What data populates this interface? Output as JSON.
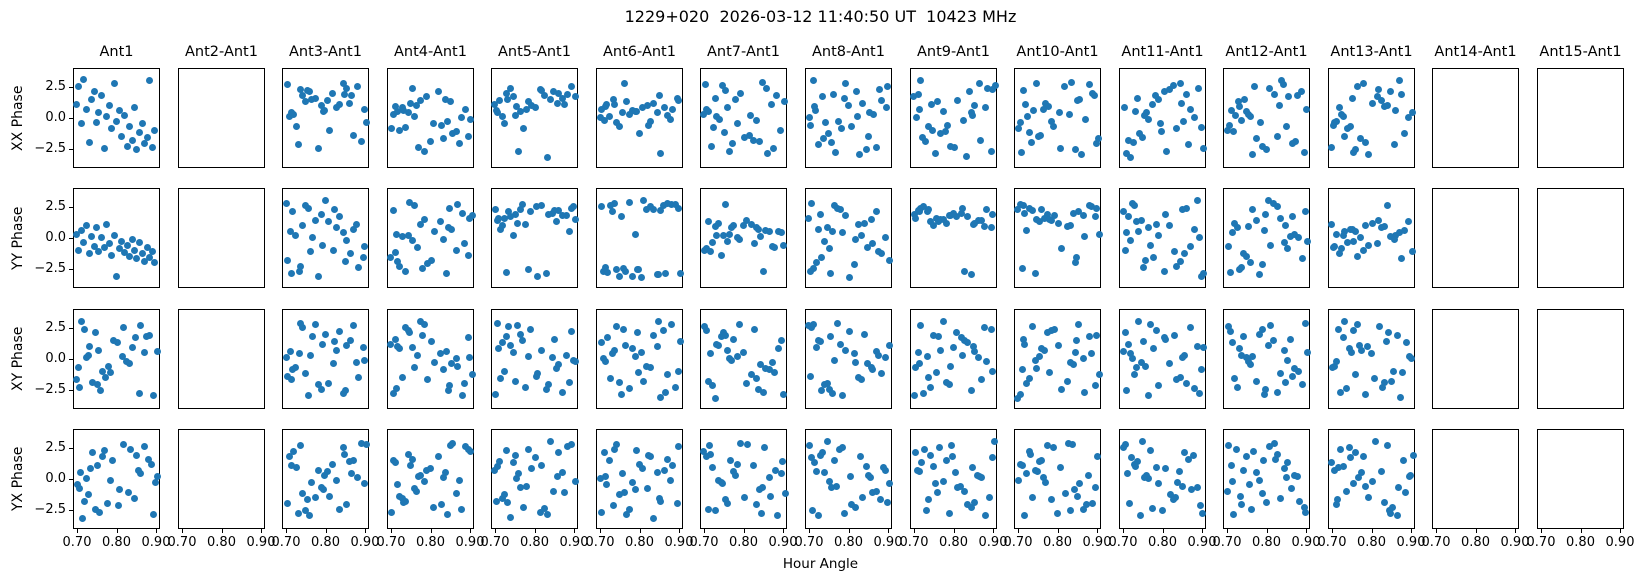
{
  "chart_data": {
    "type": "scatter",
    "suptitle": "1229+020  2026-03-12 11:40:50 UT  10423 MHz",
    "xlabel": "Hour Angle",
    "row_labels": [
      "XX Phase",
      "YY Phase",
      "XY Phase",
      "YX Phase"
    ],
    "col_titles": [
      "Ant1",
      "Ant2-Ant1",
      "Ant3-Ant1",
      "Ant4-Ant1",
      "Ant5-Ant1",
      "Ant6-Ant1",
      "Ant7-Ant1",
      "Ant8-Ant1",
      "Ant9-Ant1",
      "Ant10-Ant1",
      "Ant11-Ant1",
      "Ant12-Ant1",
      "Ant13-Ant1",
      "Ant14-Ant1",
      "Ant15-Ant1"
    ],
    "grid": {
      "rows": 4,
      "cols": 15
    },
    "xlim": [
      0.69,
      0.91
    ],
    "ylim": [
      -4.05,
      4.05
    ],
    "xtick_values": [
      0.7,
      0.8,
      0.9
    ],
    "xtick_labels": [
      "0.70",
      "0.80",
      "0.90"
    ],
    "ytick_values": [
      2.5,
      0.0,
      -2.5
    ],
    "ytick_labels": [
      "2.5",
      "0.0",
      "−2.5"
    ],
    "marker_color": "#1f77b4",
    "background_color": "#ffffff",
    "empty_panel_columns": [
      "Ant2-Ant1",
      "Ant14-Ant1",
      "Ant15-Ant1"
    ],
    "x_pools": [
      [
        0.701,
        0.864,
        0.733,
        0.792,
        0.815,
        0.746,
        0.878,
        0.706,
        0.771,
        0.842,
        0.896,
        0.758,
        0.724,
        0.803,
        0.851,
        0.716,
        0.786,
        0.869,
        0.739,
        0.826,
        0.901,
        0.753,
        0.779,
        0.834,
        0.711,
        0.889,
        0.762,
        0.808,
        0.846,
        0.728,
        0.795,
        0.858
      ],
      [
        0.885,
        0.719,
        0.773,
        0.841,
        0.704,
        0.829,
        0.762,
        0.899,
        0.735,
        0.787,
        0.853,
        0.713,
        0.806,
        0.748,
        0.871,
        0.726,
        0.893,
        0.756,
        0.818,
        0.698,
        0.836,
        0.781,
        0.742,
        0.864,
        0.709,
        0.825,
        0.767,
        0.847,
        0.73,
        0.798,
        0.876,
        0.752
      ],
      [
        0.744,
        0.812,
        0.697,
        0.859,
        0.776,
        0.728,
        0.89,
        0.751,
        0.822,
        0.705,
        0.845,
        0.783,
        0.717,
        0.867,
        0.737,
        0.799,
        0.856,
        0.722,
        0.881,
        0.763,
        0.709,
        0.831,
        0.791,
        0.749,
        0.902,
        0.769,
        0.814,
        0.701,
        0.838,
        0.757,
        0.872,
        0.726
      ],
      [
        0.806,
        0.731,
        0.869,
        0.714,
        0.791,
        0.848,
        0.699,
        0.764,
        0.882,
        0.739,
        0.817,
        0.754,
        0.894,
        0.708,
        0.779,
        0.833,
        0.721,
        0.861,
        0.746,
        0.897,
        0.772,
        0.711,
        0.826,
        0.786,
        0.851,
        0.734,
        0.876,
        0.702,
        0.798,
        0.842,
        0.759,
        0.819
      ],
      [
        0.757,
        0.894,
        0.712,
        0.838,
        0.781,
        0.726,
        0.863,
        0.704,
        0.799,
        0.851,
        0.743,
        0.884,
        0.718,
        0.772,
        0.829,
        0.697,
        0.846,
        0.765,
        0.903,
        0.734,
        0.808,
        0.752,
        0.877,
        0.709,
        0.823,
        0.789,
        0.741,
        0.866,
        0.715,
        0.843,
        0.776,
        0.897
      ],
      [
        0.731,
        0.802,
        0.877,
        0.698,
        0.766,
        0.843,
        0.722,
        0.891,
        0.749,
        0.814,
        0.703,
        0.858,
        0.774,
        0.736,
        0.896,
        0.711,
        0.788,
        0.852,
        0.727,
        0.869,
        0.745,
        0.901,
        0.761,
        0.806,
        0.717,
        0.834,
        0.782,
        0.755,
        0.887,
        0.707,
        0.827,
        0.848
      ],
      [
        0.696,
        0.702,
        0.709,
        0.715,
        0.721,
        0.728,
        0.734,
        0.741,
        0.747,
        0.753,
        0.76,
        0.766,
        0.773,
        0.779,
        0.785,
        0.792,
        0.798,
        0.805,
        0.811,
        0.817,
        0.824,
        0.83,
        0.837,
        0.843,
        0.849,
        0.856,
        0.862,
        0.869,
        0.875,
        0.881,
        0.888,
        0.894
      ]
    ],
    "y_pools": [
      [
        2.7,
        -1.3,
        0.4,
        -2.8,
        1.6,
        0.2,
        -0.9,
        2.3,
        -1.7,
        0.8,
        3.0,
        -0.4,
        -2.2,
        1.2,
        0.0,
        -1.5,
        2.5,
        -0.7,
        1.9,
        -2.6,
        0.6,
        -0.1,
        2.1,
        -1.1,
        1.4,
        -2.0,
        0.3,
        2.8,
        -1.8,
        0.9,
        -2.4,
        1.7
      ],
      [
        -0.6,
        1.8,
        -2.3,
        0.7,
        2.9,
        -1.4,
        0.1,
        -2.7,
        1.5,
        -0.3,
        2.2,
        -1.9,
        0.9,
        3.1,
        -0.8,
        1.3,
        -2.1,
        0.4,
        -1.2,
        2.6,
        -0.2,
        1.0,
        -2.9,
        1.7,
        0.5,
        -1.6,
        2.4,
        -0.5,
        1.1,
        -2.5,
        2.0,
        0.2
      ],
      [
        1.4,
        -2.6,
        0.8,
        2.2,
        -0.5,
        -1.8,
        2.9,
        0.1,
        -2.3,
        1.1,
        -0.9,
        2.5,
        -1.5,
        0.6,
        -3.0,
        1.8,
        0.3,
        -1.2,
        2.7,
        -0.6,
        1.5,
        -2.8,
        0.9,
        2.0,
        -0.1,
        -2.2,
        1.2,
        -1.7,
        3.1,
        0.5,
        -1.0,
        2.4
      ],
      [
        -1.9,
        0.5,
        2.8,
        -0.8,
        1.3,
        -2.5,
        0.2,
        1.9,
        -1.4,
        2.6,
        -0.3,
        -2.9,
        1.0,
        0.7,
        -2.0,
        2.3,
        -0.6,
        1.6,
        -1.1,
        0.0,
        2.9,
        -1.6,
        0.8,
        -2.4,
        1.2,
        3.0,
        -0.2,
        -1.3,
        2.1,
        -2.7,
        0.4,
        1.5
      ],
      [
        0.9,
        -2.1,
        1.7,
        -0.4,
        2.4,
        -1.5,
        0.1,
        -2.8,
        1.2,
        2.9,
        -0.7,
        0.5,
        -1.9,
        2.2,
        -0.2,
        -3.1,
        1.6,
        0.8,
        -1.2,
        2.7,
        -2.4,
        0.3,
        1.9,
        -0.8,
        -1.7,
        2.5,
        0.0,
        -2.6,
        1.3,
        0.6,
        -1.0,
        2.0
      ],
      [
        2.2,
        0.3,
        -1.6,
        2.8,
        -0.5,
        1.1,
        -2.9,
        0.8,
        -0.1,
        -2.2,
        1.8,
        -1.0,
        2.5,
        0.6,
        -1.8,
        1.4,
        -2.7,
        0.2,
        2.0,
        -0.9,
        3.1,
        -0.3,
        1.6,
        -2.0,
        0.7,
        -1.4,
        2.6,
        -0.6,
        1.0,
        -2.5,
        1.9,
        0.4
      ]
    ],
    "panels": {
      "r0c0": {
        "xp": 6,
        "y": [
          1.2,
          2.6,
          -0.4,
          3.2,
          0.8,
          -1.9,
          1.6,
          2.2,
          -0.3,
          0.5,
          1.9,
          -2.4,
          0.2,
          1.1,
          -0.8,
          2.9,
          -0.2,
          0.7,
          -1.4,
          0.3,
          -2.2,
          -0.6,
          -1.7,
          0.9,
          -2.5,
          -1.1,
          -0.4,
          -2.0,
          -1.5,
          3.1,
          -2.3,
          -0.9
        ]
      },
      "r0c2": {
        "xp": 0,
        "y": [
          2.8,
          1.9,
          2.4,
          0.6,
          2.1,
          1.4,
          2.6,
          0.2,
          1.7,
          2.9,
          0.8,
          2.2,
          -0.6,
          1.5,
          2.5,
          0.4,
          1.1,
          -1.3,
          1.9,
          0.9,
          -0.3,
          2.3,
          -2.4,
          1.2,
          0.5,
          -1.8,
          1.6,
          -0.9,
          2.0,
          -2.1,
          0.7,
          1.3
        ]
      },
      "r0c3": {
        "xp": 1,
        "y": [
          0.8,
          -0.9,
          1.5,
          -0.2,
          0.4,
          -1.6,
          1.1,
          0.0,
          -0.7,
          1.8,
          -1.2,
          0.6,
          -0.4,
          1.3,
          -2.0,
          0.9,
          -1.4,
          0.2,
          2.2,
          -0.8,
          1.6,
          -2.6,
          0.5,
          -1.0,
          1.0,
          -0.5,
          -2.3,
          1.4,
          0.7,
          -1.8,
          0.1,
          2.5
        ]
      },
      "r0c4": {
        "xp": 2,
        "y": [
          1.8,
          2.4,
          1.2,
          2.1,
          0.8,
          1.6,
          2.6,
          1.0,
          1.9,
          0.5,
          2.2,
          1.4,
          0.2,
          1.7,
          2.5,
          0.9,
          1.3,
          -0.4,
          2.0,
          0.6,
          1.5,
          -3.1,
          1.1,
          0.3,
          1.8,
          -0.8,
          2.3,
          0.7,
          1.6,
          -2.6,
          1.2,
          2.1
        ]
      },
      "r0c5": {
        "xp": 3,
        "y": [
          0.9,
          1.6,
          0.3,
          1.2,
          0.6,
          1.9,
          0.1,
          1.4,
          0.8,
          -0.3,
          1.1,
          0.5,
          1.7,
          -0.1,
          0.7,
          1.3,
          0.2,
          0.9,
          -0.6,
          1.5,
          0.4,
          1.0,
          -0.2,
          0.6,
          -2.8,
          1.2,
          0.0,
          0.8,
          -1.2,
          0.5,
          2.9,
          -0.5
        ]
      },
      "r0c6": {
        "xp": 2,
        "yp": 0
      },
      "r0c7": {
        "xp": 3,
        "yp": 1
      },
      "r0c8": {
        "xp": 4,
        "yp": 2
      },
      "r0c9": {
        "xp": 5,
        "yp": 3
      },
      "r0c10": {
        "xp": 0,
        "yp": 4
      },
      "r0c11": {
        "xp": 1,
        "yp": 5
      },
      "r0c12": {
        "xp": 2,
        "yp": 1
      },
      "r1c0": {
        "xp": 6,
        "y": [
          0.4,
          -0.9,
          0.7,
          -0.3,
          1.1,
          -1.2,
          0.2,
          -0.6,
          0.9,
          -1.0,
          0.1,
          -0.7,
          1.2,
          -0.4,
          -1.3,
          0.3,
          -3.0,
          -0.8,
          -0.2,
          -1.1,
          -0.5,
          -1.4,
          0.0,
          -0.9,
          -1.6,
          -0.3,
          -1.2,
          -1.8,
          -0.7,
          -1.5,
          -1.0,
          -1.9
        ]
      },
      "r1c2": {
        "xp": 3,
        "yp": 2
      },
      "r1c3": {
        "xp": 4,
        "yp": 0
      },
      "r1c4": {
        "xp": 5,
        "y": [
          2.2,
          2.6,
          1.9,
          2.4,
          2.8,
          2.1,
          1.7,
          2.5,
          2.0,
          2.7,
          1.5,
          2.3,
          1.2,
          1.8,
          2.6,
          0.8,
          2.2,
          1.4,
          -2.7,
          1.9,
          0.3,
          1.6,
          2.4,
          -3.0,
          1.1,
          2.0,
          -2.5,
          1.3,
          0.6,
          1.7,
          -2.8,
          2.3
        ]
      },
      "r1c5": {
        "xp": 0,
        "y": [
          2.6,
          -2.8,
          2.9,
          -2.5,
          2.4,
          -3.0,
          2.8,
          -2.6,
          3.0,
          -2.9,
          2.5,
          -2.4,
          2.7,
          -3.1,
          2.3,
          -2.7,
          0.4,
          2.9,
          -2.5,
          2.6,
          -2.8,
          1.8,
          -3.0,
          2.4,
          -2.3,
          2.8,
          -2.6,
          3.1,
          -2.9,
          2.2,
          -2.5,
          2.7
        ]
      },
      "r1c6": {
        "xp": 1,
        "y": [
          0.6,
          -0.3,
          1.1,
          0.2,
          -0.8,
          0.9,
          0.4,
          -0.5,
          1.3,
          0.0,
          0.7,
          -1.0,
          1.5,
          0.3,
          -0.6,
          1.0,
          0.5,
          -0.2,
          1.2,
          -0.9,
          0.8,
          0.1,
          -1.3,
          0.6,
          1.4,
          -0.4,
          0.9,
          -2.6,
          0.3,
          1.1,
          -0.7,
          2.8
        ]
      },
      "r1c7": {
        "xp": 2,
        "yp": 4
      },
      "r1c8": {
        "xp": 3,
        "y": [
          1.8,
          2.2,
          1.5,
          2.5,
          1.9,
          1.2,
          2.0,
          1.6,
          2.4,
          1.4,
          2.1,
          1.7,
          0.9,
          2.3,
          1.3,
          1.8,
          2.6,
          1.5,
          1.1,
          2.0,
          1.6,
          2.2,
          -2.6,
          1.9,
          1.3,
          2.4,
          1.0,
          1.7,
          2.1,
          -2.9,
          1.4,
          2.5
        ]
      },
      "r1c9": {
        "xp": 4,
        "y": [
          2.4,
          1.8,
          2.7,
          2.1,
          1.5,
          2.5,
          1.9,
          2.8,
          1.3,
          2.2,
          1.6,
          2.6,
          0.7,
          2.0,
          1.1,
          2.4,
          -1.5,
          1.7,
          0.4,
          2.3,
          -0.8,
          1.4,
          2.7,
          -2.4,
          1.0,
          1.9,
          -2.8,
          0.2,
          2.1,
          -1.9,
          1.6,
          2.5
        ]
      },
      "r1c10": {
        "xp": 5,
        "yp": 2
      },
      "r1c11": {
        "xp": 0,
        "yp": 1
      },
      "r1c12": {
        "xp": 2,
        "y": [
          0.8,
          -0.4,
          1.2,
          0.3,
          -0.9,
          0.6,
          1.4,
          -0.2,
          0.9,
          -0.6,
          0.2,
          1.1,
          -1.2,
          0.5,
          -0.3,
          1.3,
          0.0,
          -0.8,
          0.7,
          -1.4,
          0.4,
          1.0,
          -0.5,
          0.8,
          -1.0,
          0.1,
          1.5,
          -0.7,
          2.7,
          0.6,
          -1.6,
          0.3
        ]
      },
      "r2c0": {
        "xp": 2,
        "yp": 5
      },
      "r2c2": {
        "xp": 3,
        "yp": 3
      },
      "r2c3": {
        "xp": 4,
        "yp": 1
      },
      "r2c4": {
        "xp": 5,
        "yp": 0
      },
      "r2c5": {
        "xp": 0,
        "yp": 2
      },
      "r2c6": {
        "xp": 1,
        "yp": 4
      },
      "r2c7": {
        "xp": 2,
        "yp": 3
      },
      "r2c8": {
        "xp": 3,
        "yp": 5
      },
      "r2c9": {
        "xp": 4,
        "yp": 4
      },
      "r2c10": {
        "xp": 5,
        "yp": 1
      },
      "r2c11": {
        "xp": 0,
        "yp": 0
      },
      "r2c12": {
        "xp": 1,
        "yp": 2
      },
      "r3c0": {
        "xp": 5,
        "yp": 4
      },
      "r3c2": {
        "xp": 0,
        "yp": 3
      },
      "r3c3": {
        "xp": 1,
        "yp": 0
      },
      "r3c4": {
        "xp": 2,
        "yp": 2
      },
      "r3c5": {
        "xp": 3,
        "yp": 4
      },
      "r3c6": {
        "xp": 4,
        "yp": 3
      },
      "r3c7": {
        "xp": 5,
        "yp": 5
      },
      "r3c8": {
        "xp": 0,
        "yp": 5
      },
      "r3c9": {
        "xp": 1,
        "yp": 3
      },
      "r3c10": {
        "xp": 1,
        "yp": 1
      },
      "r3c11": {
        "xp": 3,
        "yp": 0
      },
      "r3c12": {
        "xp": 4,
        "yp": 5
      }
    }
  }
}
